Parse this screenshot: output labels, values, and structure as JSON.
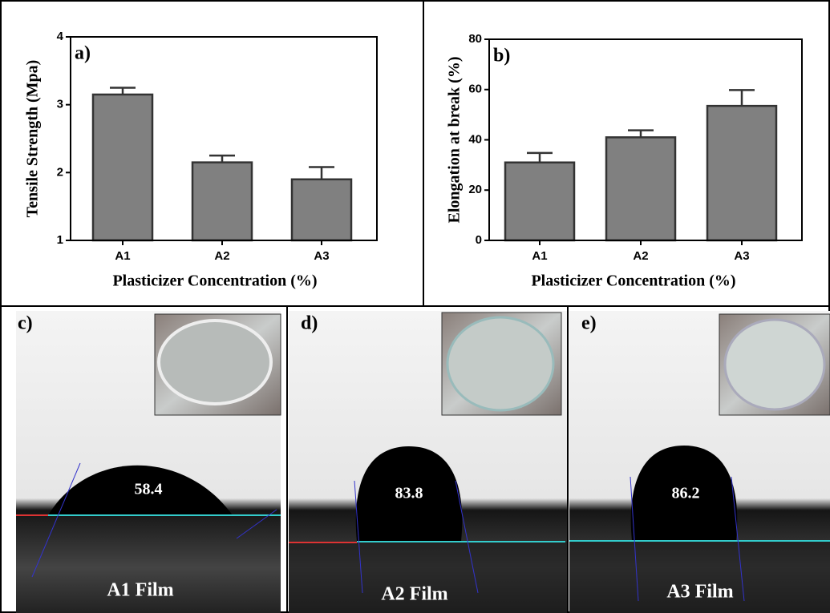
{
  "chart_data": [
    {
      "type": "bar",
      "label": "a)",
      "y_label": "Tensile Strength (Mpa)",
      "x_label": "Plasticizer Concentration (%)",
      "categories": [
        "A1",
        "A2",
        "A3"
      ],
      "values": [
        3.15,
        2.15,
        1.9
      ],
      "errors": [
        0.1,
        0.1,
        0.18
      ],
      "color": "#808080",
      "ylim": [
        1,
        4
      ],
      "yticks": [
        1,
        2,
        3,
        4
      ]
    },
    {
      "type": "bar",
      "label": "b)",
      "y_label": "Elongation at break (%)",
      "x_label": "Plasticizer Concentration (%)",
      "categories": [
        "A1",
        "A2",
        "A3"
      ],
      "values": [
        31,
        41,
        53.5
      ],
      "errors": [
        3.8,
        2.8,
        6.3
      ],
      "color": "#808080",
      "ylim": [
        0,
        80
      ],
      "yticks": [
        0,
        20,
        40,
        60,
        80
      ]
    }
  ],
  "panels": [
    {
      "label": "c)",
      "angle": 58.4,
      "film": "A1 Film"
    },
    {
      "label": "d)",
      "angle": 83.8,
      "film": "A2 Film"
    },
    {
      "label": "e)",
      "angle": 86.2,
      "film": "A3 Film"
    }
  ]
}
